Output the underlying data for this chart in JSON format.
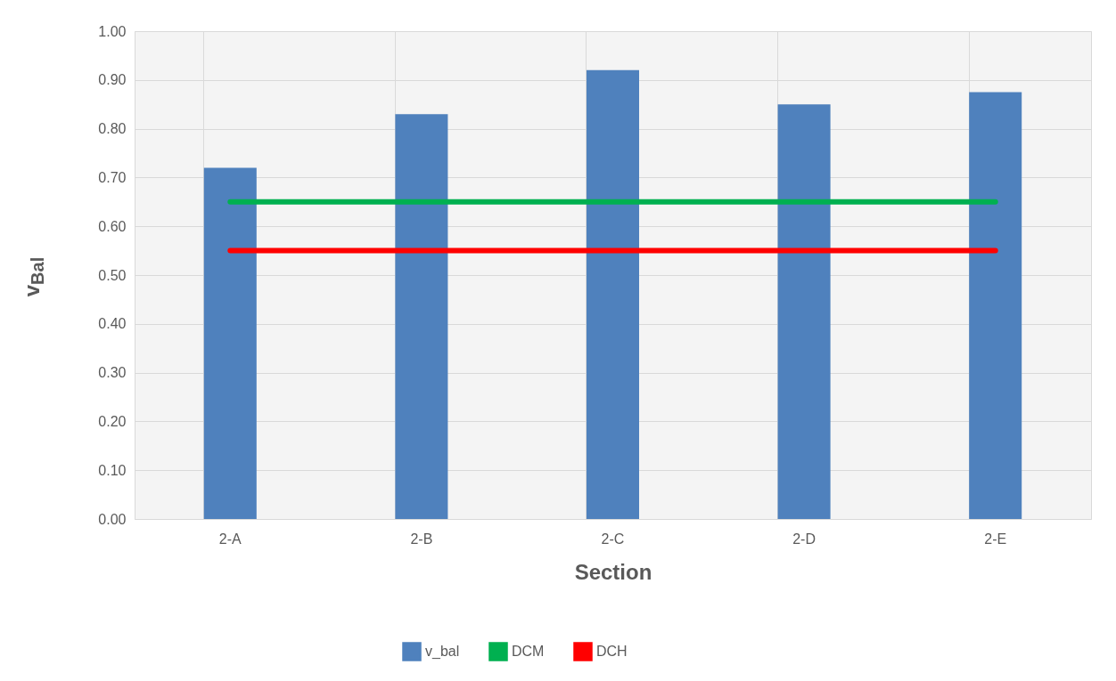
{
  "chart_data": {
    "type": "bar",
    "xlabel": "Section",
    "ylabel": "v$_{Bal}$",
    "categories": [
      "2-A",
      "2-B",
      "2-C",
      "2-D",
      "2-E"
    ],
    "series": [
      {
        "name": "v_bal",
        "color": "#4f81bd",
        "values": [
          0.72,
          0.83,
          0.92,
          0.85,
          0.875
        ]
      },
      {
        "name": "DCM",
        "type": "line",
        "color": "#00b050",
        "values": [
          0.65,
          0.65,
          0.65,
          0.65,
          0.65
        ]
      },
      {
        "name": "DCH",
        "type": "line",
        "color": "#ff0000",
        "values": [
          0.55,
          0.55,
          0.55,
          0.55,
          0.55
        ]
      }
    ],
    "ylim": [
      0,
      1
    ],
    "yticks": [
      {
        "value": 0,
        "label": "0.00"
      },
      {
        "value": 0.1,
        "label": "0.10"
      },
      {
        "value": 0.2,
        "label": "0.20"
      },
      {
        "value": 0.3,
        "label": "0.30"
      },
      {
        "value": 0.4,
        "label": "0.40"
      },
      {
        "value": 0.5,
        "label": "0.50"
      },
      {
        "value": 0.6,
        "label": "0.60"
      },
      {
        "value": 0.7,
        "label": "0.70"
      },
      {
        "value": 0.8,
        "label": "0.80"
      },
      {
        "value": 0.9,
        "label": "0.90"
      },
      {
        "value": 1,
        "label": "1.00"
      }
    ],
    "grid": true,
    "legend": "bottom"
  }
}
